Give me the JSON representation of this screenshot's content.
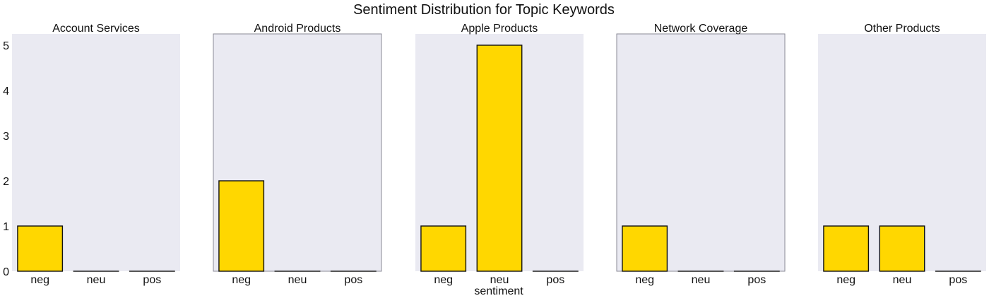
{
  "title": "Sentiment Distribution for Topic Keywords",
  "chart_data": {
    "type": "bar",
    "title": "Sentiment Distribution for Topic Keywords",
    "xlabel": "sentiment",
    "ylabel": "",
    "ylim": [
      0,
      5.25
    ],
    "y_ticks": [
      0,
      1,
      2,
      3,
      4,
      5
    ],
    "grid": false,
    "categories": [
      "neg",
      "neu",
      "pos"
    ],
    "panels": [
      {
        "name": "Account Services",
        "values": [
          1,
          0,
          0
        ]
      },
      {
        "name": "Android Products",
        "values": [
          2,
          0,
          0
        ]
      },
      {
        "name": "Apple Products",
        "values": [
          1,
          5,
          0
        ]
      },
      {
        "name": "Network Coverage",
        "values": [
          1,
          0,
          0
        ]
      },
      {
        "name": "Other Products",
        "values": [
          1,
          1,
          0
        ]
      }
    ]
  },
  "colors": {
    "bar": "#FFD700",
    "bar_edge": "#111111",
    "panel_bg": "#EAEAF2",
    "text": "#111111"
  }
}
